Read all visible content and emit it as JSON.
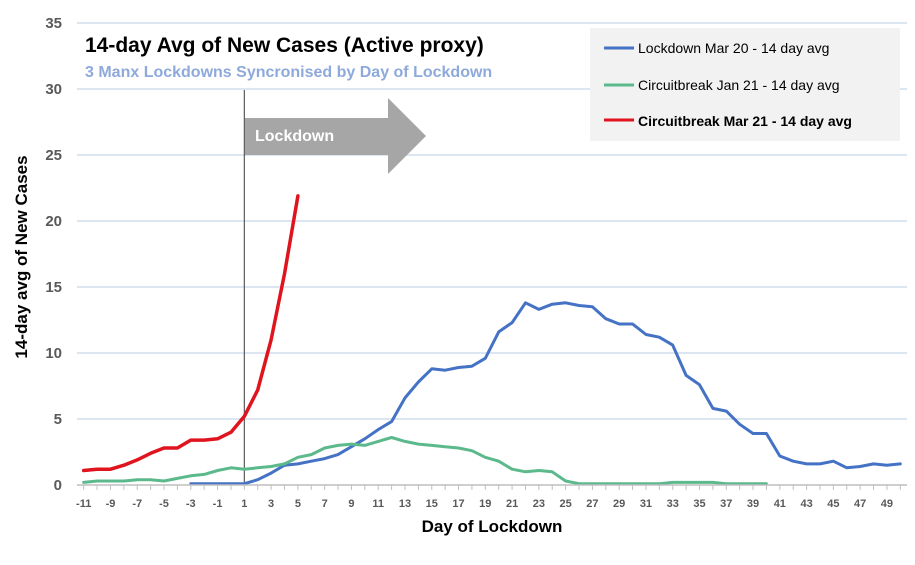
{
  "chart_data": {
    "type": "line",
    "title": "14-day Avg of New Cases (Active proxy)",
    "subtitle": "3 Manx Lockdowns Syncronised  by Day of Lockdown",
    "xlabel": "Day of Lockdown",
    "ylabel": "14-day avg of New Cases",
    "xlim": [
      -11,
      50
    ],
    "ylim": [
      0,
      35
    ],
    "x_ticks": [
      -11,
      -9,
      -7,
      -5,
      -3,
      -1,
      1,
      3,
      5,
      7,
      9,
      11,
      13,
      15,
      17,
      19,
      21,
      23,
      25,
      27,
      29,
      31,
      33,
      35,
      37,
      39,
      41,
      43,
      45,
      47,
      49
    ],
    "y_ticks": [
      0,
      5,
      10,
      15,
      20,
      25,
      30,
      35
    ],
    "grid": "horizontal",
    "legend_position": "top-right",
    "annotation": {
      "label": "Lockdown",
      "x": 1
    },
    "series": [
      {
        "name": "Lockdown Mar 20 - 14 day avg",
        "color": "#4472C4",
        "width": 3,
        "points": [
          [
            -3,
            0.1
          ],
          [
            -2,
            0.1
          ],
          [
            -1,
            0.1
          ],
          [
            0,
            0.1
          ],
          [
            1,
            0.1
          ],
          [
            2,
            0.4
          ],
          [
            3,
            0.9
          ],
          [
            4,
            1.5
          ],
          [
            5,
            1.6
          ],
          [
            6,
            1.8
          ],
          [
            7,
            2.0
          ],
          [
            8,
            2.3
          ],
          [
            9,
            2.9
          ],
          [
            10,
            3.5
          ],
          [
            11,
            4.2
          ],
          [
            12,
            4.8
          ],
          [
            13,
            6.6
          ],
          [
            14,
            7.8
          ],
          [
            15,
            8.8
          ],
          [
            16,
            8.7
          ],
          [
            17,
            8.9
          ],
          [
            18,
            9.0
          ],
          [
            19,
            9.6
          ],
          [
            20,
            11.6
          ],
          [
            21,
            12.3
          ],
          [
            22,
            13.8
          ],
          [
            23,
            13.3
          ],
          [
            24,
            13.7
          ],
          [
            25,
            13.8
          ],
          [
            26,
            13.6
          ],
          [
            27,
            13.5
          ],
          [
            28,
            12.6
          ],
          [
            29,
            12.2
          ],
          [
            30,
            12.2
          ],
          [
            31,
            11.4
          ],
          [
            32,
            11.2
          ],
          [
            33,
            10.6
          ],
          [
            34,
            8.3
          ],
          [
            35,
            7.6
          ],
          [
            36,
            5.8
          ],
          [
            37,
            5.6
          ],
          [
            38,
            4.6
          ],
          [
            39,
            3.9
          ],
          [
            40,
            3.9
          ],
          [
            41,
            2.2
          ],
          [
            42,
            1.8
          ],
          [
            43,
            1.6
          ],
          [
            44,
            1.6
          ],
          [
            45,
            1.8
          ],
          [
            46,
            1.3
          ],
          [
            47,
            1.4
          ],
          [
            48,
            1.6
          ],
          [
            49,
            1.5
          ],
          [
            50,
            1.6
          ]
        ]
      },
      {
        "name": "Circuitbreak Jan 21 - 14 day avg",
        "color": "#5BB98C",
        "width": 3,
        "points": [
          [
            -11,
            0.2
          ],
          [
            -10,
            0.3
          ],
          [
            -9,
            0.3
          ],
          [
            -8,
            0.3
          ],
          [
            -7,
            0.4
          ],
          [
            -6,
            0.4
          ],
          [
            -5,
            0.3
          ],
          [
            -4,
            0.5
          ],
          [
            -3,
            0.7
          ],
          [
            -2,
            0.8
          ],
          [
            -1,
            1.1
          ],
          [
            0,
            1.3
          ],
          [
            1,
            1.2
          ],
          [
            2,
            1.3
          ],
          [
            3,
            1.4
          ],
          [
            4,
            1.6
          ],
          [
            5,
            2.1
          ],
          [
            6,
            2.3
          ],
          [
            7,
            2.8
          ],
          [
            8,
            3.0
          ],
          [
            9,
            3.1
          ],
          [
            10,
            3.0
          ],
          [
            11,
            3.3
          ],
          [
            12,
            3.6
          ],
          [
            13,
            3.3
          ],
          [
            14,
            3.1
          ],
          [
            15,
            3.0
          ],
          [
            16,
            2.9
          ],
          [
            17,
            2.8
          ],
          [
            18,
            2.6
          ],
          [
            19,
            2.1
          ],
          [
            20,
            1.8
          ],
          [
            21,
            1.2
          ],
          [
            22,
            1.0
          ],
          [
            23,
            1.1
          ],
          [
            24,
            1.0
          ],
          [
            25,
            0.3
          ],
          [
            26,
            0.1
          ],
          [
            27,
            0.1
          ],
          [
            28,
            0.1
          ],
          [
            29,
            0.1
          ],
          [
            30,
            0.1
          ],
          [
            31,
            0.1
          ],
          [
            32,
            0.1
          ],
          [
            33,
            0.2
          ],
          [
            34,
            0.2
          ],
          [
            35,
            0.2
          ],
          [
            36,
            0.2
          ],
          [
            37,
            0.1
          ],
          [
            38,
            0.1
          ],
          [
            39,
            0.1
          ],
          [
            40,
            0.1
          ]
        ]
      },
      {
        "name": "Circuitbreak Mar 21 - 14 day avg",
        "color": "#E0141E",
        "width": 3.5,
        "points": [
          [
            -11,
            1.1
          ],
          [
            -10,
            1.2
          ],
          [
            -9,
            1.2
          ],
          [
            -8,
            1.5
          ],
          [
            -7,
            1.9
          ],
          [
            -6,
            2.4
          ],
          [
            -5,
            2.8
          ],
          [
            -4,
            2.8
          ],
          [
            -3,
            3.4
          ],
          [
            -2,
            3.4
          ],
          [
            -1,
            3.5
          ],
          [
            0,
            4.0
          ],
          [
            1,
            5.2
          ],
          [
            2,
            7.2
          ],
          [
            3,
            11.0
          ],
          [
            4,
            16.0
          ],
          [
            5,
            21.9
          ]
        ]
      }
    ]
  }
}
